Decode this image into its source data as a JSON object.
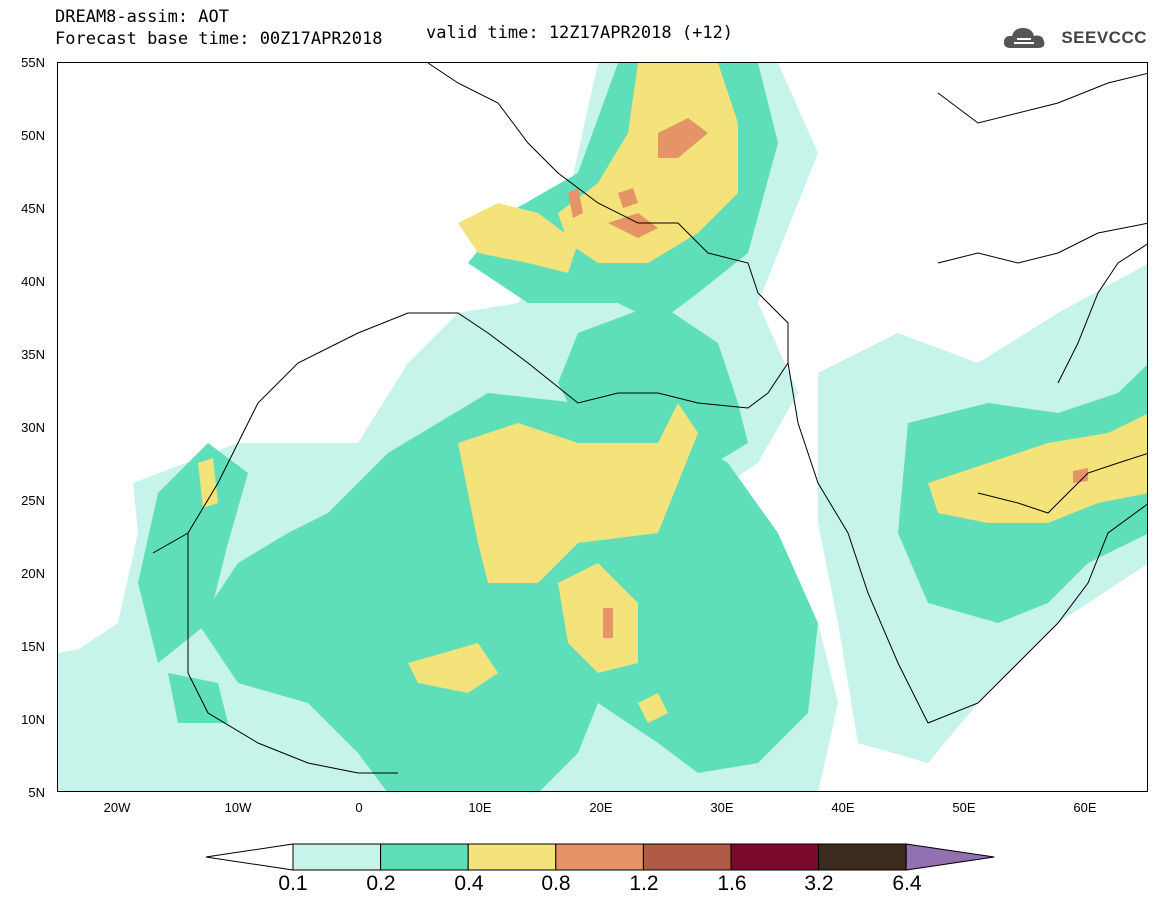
{
  "title": {
    "line1": "DREAM8-assim: AOT",
    "line2_base": "Forecast base time: 00Z17APR2018",
    "line2_valid": "valid time: 12Z17APR2018 (+12)"
  },
  "logo": {
    "icon": "cloud-icon",
    "text": "SEEVCCC"
  },
  "map": {
    "lat_labels": [
      "55N",
      "50N",
      "45N",
      "40N",
      "35N",
      "30N",
      "25N",
      "20N",
      "15N",
      "10N",
      "5N"
    ],
    "lon_labels": [
      "20W",
      "10W",
      "0",
      "10E",
      "20E",
      "30E",
      "40E",
      "50E",
      "60E"
    ],
    "lat_range": [
      5,
      55
    ],
    "lon_range": [
      -25,
      65
    ]
  },
  "legend": {
    "bin_labels": [
      "0.1",
      "0.2",
      "0.4",
      "0.8",
      "1.2",
      "1.6",
      "3.2",
      "6.4"
    ],
    "colors": [
      "#ffffff",
      "#c6f3ea",
      "#5fdfb9",
      "#f3e37a",
      "#e59467",
      "#b05a48",
      "#7b0a2a",
      "#3d2b1d",
      "#9370b0"
    ]
  }
}
